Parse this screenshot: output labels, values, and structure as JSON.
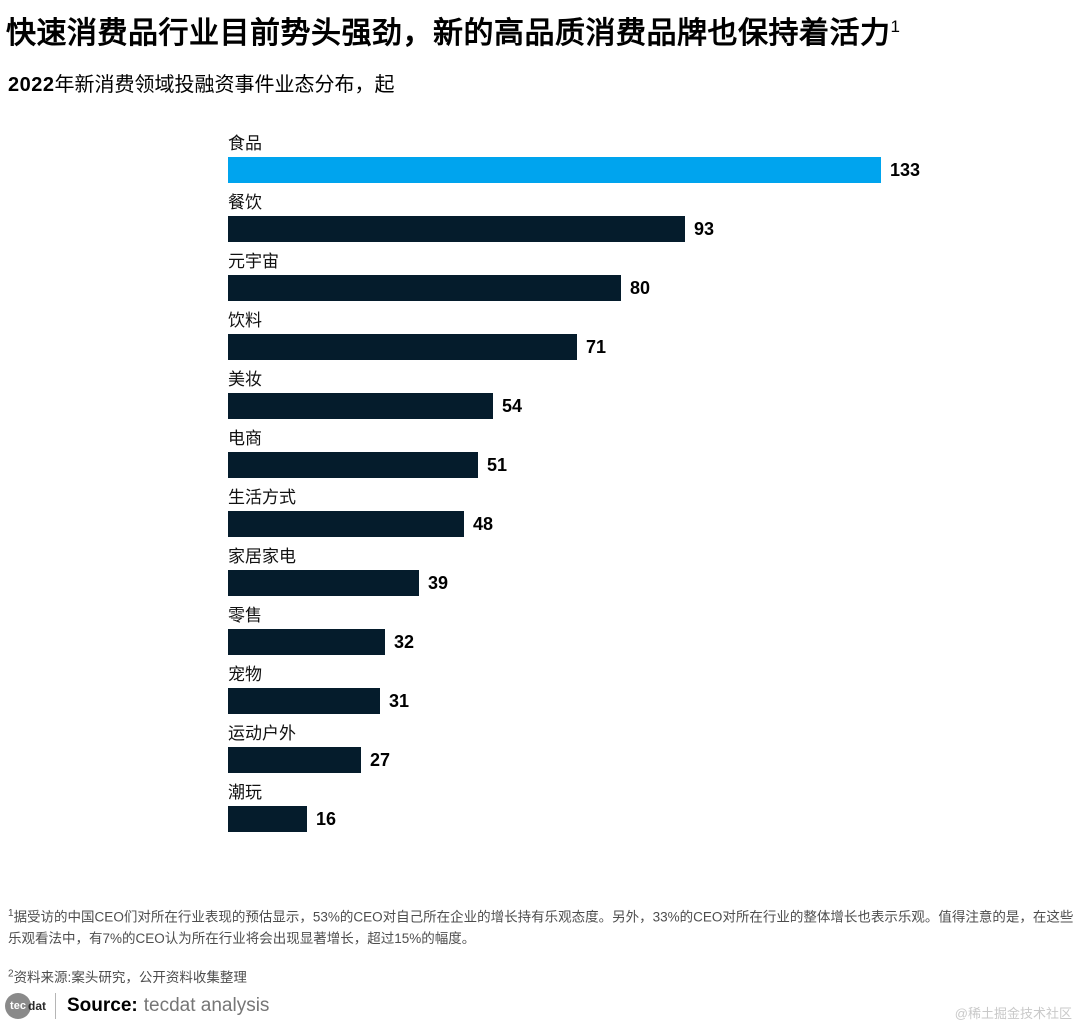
{
  "page": {
    "title": "快速消费品行业目前势头强劲，新的高品质消费品牌也保持着活力",
    "title_superscript": "1",
    "subtitle_year": "2022",
    "subtitle_rest": "年新消费领域投融资事件业态分布，起"
  },
  "chart_data": {
    "type": "bar",
    "orientation": "horizontal",
    "title": "2022年新消费领域投融资事件业态分布，起",
    "categories": [
      "食品",
      "餐饮",
      "元宇宙",
      "饮料",
      "美妆",
      "电商",
      "生活方式",
      "家居家电",
      "零售",
      "宠物",
      "运动户外",
      "潮玩"
    ],
    "values": [
      133,
      93,
      80,
      71,
      54,
      51,
      48,
      39,
      32,
      31,
      27,
      16
    ],
    "xlim": [
      0,
      133
    ],
    "value_labels_shown": true,
    "highlight_index": 0,
    "highlight_color": "#00A4EE",
    "bar_color": "#051C2C",
    "grid": false,
    "legend": false
  },
  "footnotes": {
    "note1_superscript": "1",
    "note1": "据受访的中国CEO们对所在行业表现的预估显示，53%的CEO对自己所在企业的增长持有乐观态度。另外，33%的CEO对所在行业的整体增长也表示乐观。值得注意的是，在这些乐观看法中，有7%的CEO认为所在行业将会出现显著增长，超过15%的幅度。",
    "note2_superscript": "2",
    "note2": "资料来源:案头研究，公开资料收集整理"
  },
  "footer": {
    "logo_circle_text": "tec",
    "logo_suffix": "dat",
    "source_label": "Source:",
    "source_value": "tecdat analysis"
  },
  "watermark": "@稀土掘金技术社区"
}
